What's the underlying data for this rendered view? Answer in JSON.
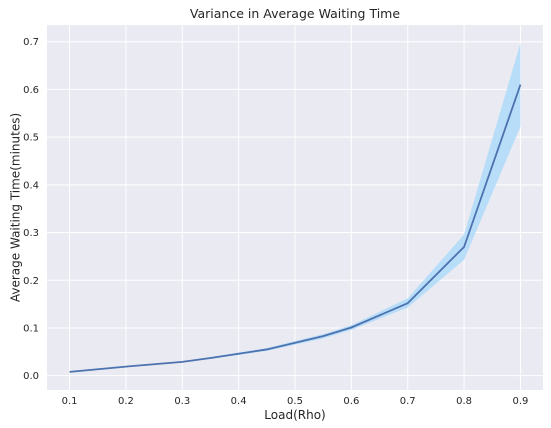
{
  "chart_data": {
    "type": "line",
    "title": "Variance in Average Waiting Time",
    "xlabel": "Load(Rho)",
    "ylabel": "Average Waiting Time(minutes)",
    "xlim": [
      0.06,
      0.94
    ],
    "ylim": [
      -0.03,
      0.735
    ],
    "xticks": [
      0.1,
      0.2,
      0.3,
      0.4,
      0.5,
      0.6,
      0.7,
      0.8,
      0.9
    ],
    "yticks": [
      0.0,
      0.1,
      0.2,
      0.3,
      0.4,
      0.5,
      0.6,
      0.7
    ],
    "grid": true,
    "style": {
      "background": "#eaeaf2",
      "grid": "#ffffff",
      "line": "#4c72b0",
      "band": "#b5dcf8"
    },
    "series": [
      {
        "x": [
          0.1,
          0.2,
          0.3,
          0.35,
          0.45,
          0.55,
          0.6,
          0.7,
          0.8,
          0.9
        ],
        "mean": [
          0.008,
          0.019,
          0.029,
          0.037,
          0.055,
          0.083,
          0.101,
          0.152,
          0.27,
          0.61
        ],
        "lower": [
          0.007,
          0.018,
          0.028,
          0.035,
          0.052,
          0.078,
          0.096,
          0.143,
          0.243,
          0.522
        ],
        "upper": [
          0.009,
          0.02,
          0.03,
          0.039,
          0.058,
          0.087,
          0.106,
          0.162,
          0.296,
          0.697
        ]
      }
    ]
  }
}
